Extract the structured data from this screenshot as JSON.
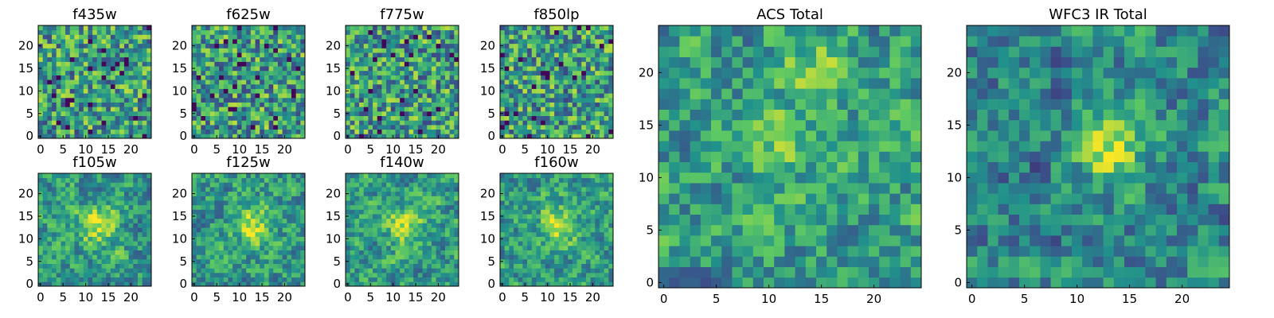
{
  "colormap": [
    "#440154",
    "#3b528b",
    "#21918c",
    "#5ec962",
    "#fde725"
  ],
  "chart_data": [
    {
      "name": "f435w",
      "type": "heatmap",
      "title": "f435w",
      "grid_size": 25,
      "pattern": "noise",
      "xticks": [
        "0",
        "5",
        "10",
        "15",
        "20"
      ],
      "yticks": [
        "0",
        "5",
        "10",
        "15",
        "20"
      ],
      "seed": 11
    },
    {
      "name": "f625w",
      "type": "heatmap",
      "title": "f625w",
      "grid_size": 25,
      "pattern": "noise",
      "xticks": [
        "0",
        "5",
        "10",
        "15",
        "20"
      ],
      "yticks": [
        "0",
        "5",
        "10",
        "15",
        "20"
      ],
      "seed": 23
    },
    {
      "name": "f775w",
      "type": "heatmap",
      "title": "f775w",
      "grid_size": 25,
      "pattern": "noise",
      "xticks": [
        "0",
        "5",
        "10",
        "15",
        "20"
      ],
      "yticks": [
        "0",
        "5",
        "10",
        "15",
        "20"
      ],
      "seed": 37
    },
    {
      "name": "f850lp",
      "type": "heatmap",
      "title": "f850lp",
      "grid_size": 25,
      "pattern": "noise",
      "xticks": [
        "0",
        "5",
        "10",
        "15",
        "20"
      ],
      "yticks": [
        "0",
        "5",
        "10",
        "15",
        "20"
      ],
      "seed": 41
    },
    {
      "name": "f105w",
      "type": "heatmap",
      "title": "f105w",
      "grid_size": 25,
      "pattern": "smooth",
      "xticks": [
        "0",
        "5",
        "10",
        "15",
        "20"
      ],
      "yticks": [
        "0",
        "5",
        "10",
        "15",
        "20"
      ],
      "seed": 53
    },
    {
      "name": "f125w",
      "type": "heatmap",
      "title": "f125w",
      "grid_size": 25,
      "pattern": "smooth",
      "xticks": [
        "0",
        "5",
        "10",
        "15",
        "20"
      ],
      "yticks": [
        "0",
        "5",
        "10",
        "15",
        "20"
      ],
      "seed": 67
    },
    {
      "name": "f140w",
      "type": "heatmap",
      "title": "f140w",
      "grid_size": 25,
      "pattern": "smooth",
      "xticks": [
        "0",
        "5",
        "10",
        "15",
        "20"
      ],
      "yticks": [
        "0",
        "5",
        "10",
        "15",
        "20"
      ],
      "seed": 71
    },
    {
      "name": "f160w",
      "type": "heatmap",
      "title": "f160w",
      "grid_size": 25,
      "pattern": "smooth",
      "xticks": [
        "0",
        "5",
        "10",
        "15",
        "20"
      ],
      "yticks": [
        "0",
        "5",
        "10",
        "15",
        "20"
      ],
      "seed": 89
    },
    {
      "name": "acs-total",
      "type": "heatmap",
      "title": "ACS Total",
      "grid_size": 25,
      "pattern": "acs",
      "xticks": [
        "0",
        "5",
        "10",
        "15",
        "20"
      ],
      "yticks": [
        "0",
        "5",
        "10",
        "15",
        "20"
      ],
      "seed": 97
    },
    {
      "name": "wfc3-ir-total",
      "type": "heatmap",
      "title": "WFC3 IR Total",
      "grid_size": 25,
      "pattern": "ir",
      "xticks": [
        "0",
        "5",
        "10",
        "15",
        "20"
      ],
      "yticks": [
        "0",
        "5",
        "10",
        "15",
        "20"
      ],
      "seed": 103
    }
  ]
}
